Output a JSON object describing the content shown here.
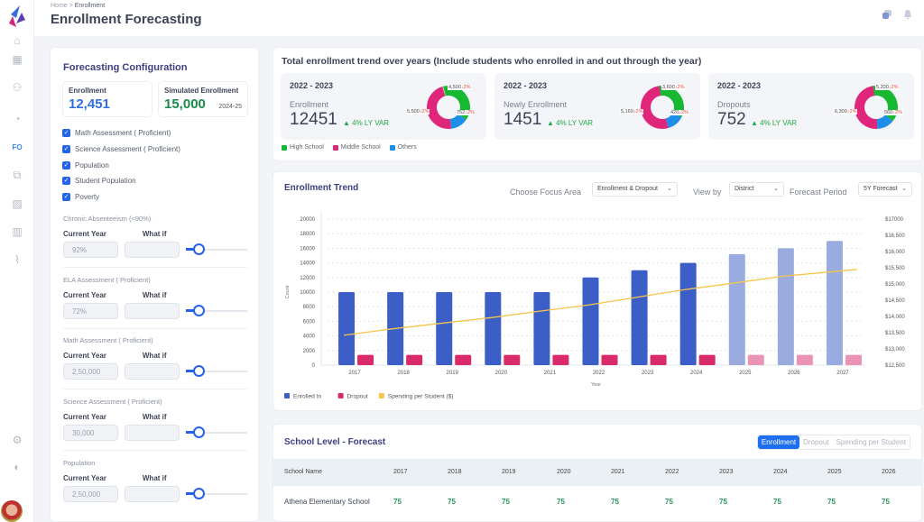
{
  "rail": {
    "items": [
      {
        "icon": "lock-icon"
      },
      {
        "icon": "grid-icon"
      },
      {
        "icon": "users-icon"
      },
      {
        "icon": "timer-icon"
      },
      {
        "icon": "fo-badge",
        "label": "FO"
      },
      {
        "icon": "copy-icon"
      },
      {
        "icon": "image-icon"
      },
      {
        "icon": "bar-chart-icon"
      },
      {
        "icon": "line-chart-icon"
      },
      {
        "icon": "settings-icon"
      },
      {
        "icon": "theme-icon"
      }
    ]
  },
  "header": {
    "breadcrumb": [
      "Home",
      ">",
      "Enrollment"
    ],
    "title": "Enrollment Forecasting"
  },
  "config": {
    "title": "Forecasting Configuration",
    "enrollment": {
      "label": "Enrollment",
      "value": "12,451"
    },
    "simulated": {
      "label": "Simulated Enrollment",
      "value": "15,000",
      "year": "2024-25"
    },
    "checkboxes": [
      "Math Assessment ( Proficient)",
      "Science Assessment ( Proficient)",
      "Population",
      "Student Population",
      "Poverty"
    ],
    "col_current": "Current Year",
    "col_whatif": "What if",
    "sections": [
      {
        "title": "Chronic Absenteeism (<90%)",
        "current": "92%",
        "whatif": ""
      },
      {
        "title": "ELA Assessment ( Proficient)",
        "current": "72%",
        "whatif": ""
      },
      {
        "title": "Math Assessment ( Proficient)",
        "current": "2,50,000",
        "whatif": ""
      },
      {
        "title": "Science Assessment ( Proficient)",
        "current": "30,000",
        "whatif": ""
      },
      {
        "title": "Population",
        "current": "2,50,000",
        "whatif": ""
      }
    ]
  },
  "trend": {
    "title": "Total enrollment trend over years (Include students who enrolled in and out through the year)",
    "kpis": [
      {
        "year": "2022 - 2023",
        "name": "Enrollment",
        "value": "12451",
        "var": "▲ 4% LY VAR",
        "slices": [
          {
            "label": "4,500",
            "chg": "↓2%",
            "value": 4500
          },
          {
            "label": "752",
            "chg": "↓2%",
            "value": 752
          },
          {
            "label": "5,500",
            "chg": "↓2%",
            "value": 5500
          }
        ]
      },
      {
        "year": "2022 - 2023",
        "name": "Newly Enrollment",
        "value": "1451",
        "var": "▲ 4% LY VAR",
        "slices": [
          {
            "label": "3,600",
            "chg": "↓2%",
            "value": 3600
          },
          {
            "label": "420",
            "chg": "↓2%",
            "value": 420
          },
          {
            "label": "5,160",
            "chg": "↓2%",
            "value": 5160
          }
        ]
      },
      {
        "year": "2022 - 2023",
        "name": "Dropouts",
        "value": "752",
        "var": "▲ 4% LY VAR",
        "slices": [
          {
            "label": "5,200",
            "chg": "↓2%",
            "value": 5200
          },
          {
            "label": "560",
            "chg": "↓2%",
            "value": 560
          },
          {
            "label": "6,300",
            "chg": "↓2%",
            "value": 6300
          }
        ]
      }
    ],
    "legend": [
      {
        "label": "High School",
        "color": "#18b832"
      },
      {
        "label": "Middle School",
        "color": "#e0267a"
      },
      {
        "label": "Others",
        "color": "#1f8ee8"
      }
    ]
  },
  "enrollment_trend": {
    "title": "Enrollment Trend",
    "focus_label": "Choose Focus Area",
    "focus_value": "Enrollment & Dropout",
    "view_label": "View by",
    "view_value": "District",
    "period_label": "Forecast Period",
    "period_value": "5Y Forecast"
  },
  "chart_data": {
    "type": "bar",
    "xlabel": "Year",
    "ylabel": "Count",
    "categories": [
      "2017",
      "2018",
      "2019",
      "2020",
      "2021",
      "2022",
      "2023",
      "2024",
      "2025",
      "2026",
      "2027"
    ],
    "series": [
      {
        "name": "Enrolled In",
        "color": "#3b5fc7",
        "forecast_color": "#9aacdf",
        "values": [
          10000,
          10000,
          10000,
          10000,
          10000,
          12000,
          13000,
          14000,
          15200,
          16000,
          17000
        ]
      },
      {
        "name": "Dropout",
        "color": "#d92a6b",
        "forecast_color": "#ea93b5",
        "values": [
          1400,
          1400,
          1400,
          1400,
          1400,
          1400,
          1400,
          1400,
          1400,
          1400,
          1400
        ]
      },
      {
        "name": "Spending per Student ($)",
        "color": "#f6c54a",
        "type": "line",
        "axis": "right",
        "values": [
          13420,
          13620,
          13790,
          13960,
          14160,
          14350,
          14590,
          14830,
          15030,
          15240,
          15450
        ]
      }
    ],
    "forecast_from": "2025",
    "yticks": [
      "0",
      "2000",
      "4000",
      "6000",
      "8000",
      "10000",
      "12000",
      "14000",
      "16000",
      "18000",
      "20000"
    ],
    "ylim": [
      0,
      20000
    ],
    "y2ticks": [
      "$12,500",
      "$13,000",
      "$13,500",
      "$14,000",
      "$14,500",
      "$15,000",
      "$15,500",
      "$16,000",
      "$16,500",
      "$17000"
    ],
    "y2lim": [
      12500,
      17000
    ],
    "grid": true,
    "legend_position": "bottom-left"
  },
  "school": {
    "title": "School Level - Forecast",
    "tabs": [
      "Enrollment",
      "Dropout",
      "Spending per Student"
    ],
    "columns": [
      "School Name",
      "2017",
      "2018",
      "2019",
      "2020",
      "2021",
      "2022",
      "2023",
      "2024",
      "2025",
      "2026"
    ],
    "rows": [
      [
        "Athena Elementary School",
        "75",
        "75",
        "75",
        "75",
        "75",
        "75",
        "75",
        "75",
        "75",
        "75"
      ]
    ]
  }
}
